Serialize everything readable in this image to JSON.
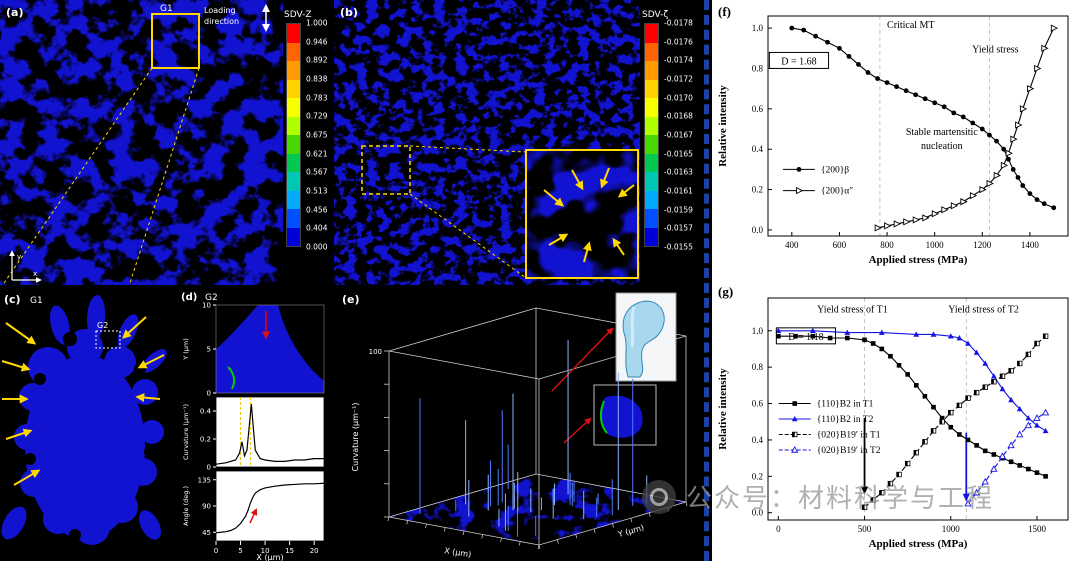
{
  "panel_a": {
    "label": "(a)",
    "region_label": "G1",
    "loading": [
      "Loading",
      "direction"
    ],
    "axes": {
      "x": "x",
      "y": "y"
    },
    "colorbar": {
      "title": "SDV-Z",
      "ticks": [
        "1.000",
        "0.946",
        "0.892",
        "0.838",
        "0.783",
        "0.729",
        "0.675",
        "0.621",
        "0.567",
        "0.513",
        "0.456",
        "0.404",
        "0.000"
      ],
      "colors": [
        "#ff0000",
        "#ff6400",
        "#ff9b00",
        "#ffd200",
        "#f8ff00",
        "#b0ff00",
        "#48d800",
        "#00c850",
        "#00c8b4",
        "#00aaff",
        "#0050ff",
        "#0000d8"
      ]
    }
  },
  "panel_b": {
    "label": "(b)",
    "colorbar": {
      "title": "SDV-ζ",
      "ticks": [
        "-0.0178",
        "-0.0176",
        "-0.0174",
        "-0.0172",
        "-0.0170",
        "-0.0168",
        "-0.0167",
        "-0.0165",
        "-0.0163",
        "-0.0161",
        "-0.0159",
        "-0.0157",
        "-0.0155"
      ],
      "colors": [
        "#ff0000",
        "#ff6400",
        "#ff9b00",
        "#ffd200",
        "#f8ff00",
        "#b0ff00",
        "#48d800",
        "#00c850",
        "#00c8b4",
        "#00aaff",
        "#0050ff",
        "#0000d8"
      ]
    }
  },
  "panel_c": {
    "label": "(c)",
    "region_label": "G1",
    "inner_label": "G2"
  },
  "panel_d": {
    "label": "(d)",
    "region_label": "G2",
    "plots": {
      "xlim": [
        0,
        22
      ],
      "xticks": [
        0,
        5,
        10,
        15,
        20
      ],
      "xlabel": "X (μm)",
      "top": {
        "ylabel": "Y (μm)",
        "yticks": [
          10,
          5,
          0
        ],
        "ylim": [
          0,
          10
        ]
      },
      "mid": {
        "ylabel": "Curvature (μm⁻¹)",
        "yticks": [
          0.4,
          0.2,
          0.0
        ],
        "ylim": [
          0,
          0.5
        ],
        "vlines": [
          5,
          7
        ],
        "curve_x": [
          0,
          2,
          4,
          4.8,
          5.3,
          5.8,
          6.3,
          6.8,
          7.2,
          7.6,
          8,
          9,
          10,
          12,
          14,
          16,
          18,
          20,
          22
        ],
        "curve_y": [
          0.02,
          0.03,
          0.05,
          0.1,
          0.18,
          0.08,
          0.12,
          0.3,
          0.45,
          0.28,
          0.12,
          0.06,
          0.05,
          0.04,
          0.04,
          0.05,
          0.05,
          0.06,
          0.06
        ]
      },
      "bot": {
        "ylabel": "Angle (deg.)",
        "yticks": [
          135,
          90,
          45
        ],
        "ylim": [
          30,
          150
        ],
        "curve_x": [
          0,
          1,
          2,
          3,
          4,
          5,
          6,
          6.5,
          7,
          7.5,
          8,
          9,
          10,
          12,
          14,
          16,
          18,
          20,
          22
        ],
        "curve_y": [
          44,
          45,
          46,
          48,
          52,
          60,
          72,
          82,
          95,
          105,
          112,
          118,
          121,
          124,
          126,
          127,
          128,
          128,
          129
        ]
      }
    }
  },
  "panel_e": {
    "label": "(e)",
    "zlabel": "Curvature (μm⁻¹)",
    "z_tick": "100",
    "xlabel": "X (μm)",
    "ylabel": "Y (μm)"
  },
  "watermark": {
    "text": "公众号：材料科学与工程"
  },
  "chart_data": [
    {
      "panel_label": "(f)",
      "type": "line",
      "title": "",
      "xlabel": "Applied stress (MPa)",
      "ylabel": "Relative intensity",
      "xlim": [
        300,
        1560
      ],
      "ylim": [
        -0.03,
        1.06
      ],
      "xticks": [
        400,
        600,
        800,
        1000,
        1200,
        1400
      ],
      "yticks": [
        0.0,
        0.2,
        0.4,
        0.6,
        0.8,
        1.0
      ],
      "vlines": [
        770,
        1230
      ],
      "legend": {
        "x": 430,
        "y": 0.3,
        "dy": 0.105
      },
      "annotations": [
        {
          "text": "Critical MT",
          "x": 800,
          "y": 1.0,
          "anchor": "start"
        },
        {
          "text": "Yield stress",
          "x": 1255,
          "y": 0.88
        },
        {
          "text": "Stable martensitic",
          "x": 1030,
          "y": 0.47
        },
        {
          "text": "nucleation",
          "x": 1030,
          "y": 0.4
        },
        {
          "text": "D = 1.68",
          "x": 430,
          "y": 0.82,
          "box": true
        }
      ],
      "series": [
        {
          "name": "{200}β",
          "color": "#000000",
          "marker": "circle",
          "line": "solid",
          "x": [
            400,
            450,
            500,
            550,
            600,
            640,
            680,
            720,
            760,
            800,
            840,
            880,
            920,
            960,
            1000,
            1040,
            1080,
            1120,
            1160,
            1200,
            1230,
            1260,
            1290,
            1310,
            1330,
            1350,
            1370,
            1400,
            1430,
            1460,
            1500
          ],
          "y": [
            1.0,
            0.99,
            0.96,
            0.93,
            0.9,
            0.86,
            0.82,
            0.78,
            0.75,
            0.73,
            0.71,
            0.69,
            0.67,
            0.65,
            0.63,
            0.61,
            0.58,
            0.56,
            0.53,
            0.5,
            0.47,
            0.44,
            0.4,
            0.35,
            0.3,
            0.26,
            0.22,
            0.18,
            0.15,
            0.13,
            0.11
          ]
        },
        {
          "name": "{200}α″",
          "color": "#000000",
          "marker": "tri-right-open",
          "line": "solid",
          "x": [
            760,
            800,
            840,
            880,
            920,
            960,
            1000,
            1040,
            1080,
            1120,
            1160,
            1200,
            1230,
            1260,
            1290,
            1310,
            1330,
            1350,
            1370,
            1400,
            1430,
            1460,
            1500
          ],
          "y": [
            0.01,
            0.02,
            0.03,
            0.04,
            0.05,
            0.06,
            0.08,
            0.1,
            0.12,
            0.14,
            0.17,
            0.2,
            0.23,
            0.27,
            0.32,
            0.38,
            0.45,
            0.52,
            0.6,
            0.7,
            0.8,
            0.9,
            1.0
          ]
        }
      ]
    },
    {
      "panel_label": "(g)",
      "type": "line",
      "title": "",
      "xlabel": "Applied stress (MPa)",
      "ylabel": "Relative intensity",
      "xlim": [
        -60,
        1680
      ],
      "ylim": [
        -0.04,
        1.18
      ],
      "xticks": [
        0,
        500,
        1000,
        1500
      ],
      "yticks": [
        0.0,
        0.2,
        0.4,
        0.6,
        0.8,
        1.0
      ],
      "vlines": [
        500,
        1090
      ],
      "legend": {
        "x": 95,
        "y": 0.6,
        "dy": 0.085
      },
      "annotations": [
        {
          "text": "Yield stress of T1",
          "x": 430,
          "y": 1.1,
          "color": "#000000"
        },
        {
          "text": "Yield stress of T2",
          "x": 1190,
          "y": 1.1,
          "color": "#1414e6"
        },
        {
          "text": "D = 1.18",
          "x": 160,
          "y": 0.95,
          "box": true
        }
      ],
      "arrows": [
        {
          "x": 500,
          "y1": 0.52,
          "y2": 0.1,
          "color": "#000000"
        },
        {
          "x": 1090,
          "y1": 0.44,
          "y2": 0.06,
          "color": "#1414e6"
        }
      ],
      "series": [
        {
          "name": "{110}B2 in T1",
          "color": "#000000",
          "marker": "square",
          "line": "solid",
          "x": [
            0,
            100,
            200,
            300,
            400,
            500,
            550,
            600,
            650,
            700,
            750,
            800,
            850,
            900,
            950,
            1000,
            1050,
            1100,
            1150,
            1200,
            1250,
            1300,
            1350,
            1400,
            1450,
            1500,
            1550
          ],
          "y": [
            0.97,
            0.97,
            0.97,
            0.96,
            0.96,
            0.95,
            0.93,
            0.9,
            0.86,
            0.81,
            0.76,
            0.7,
            0.64,
            0.58,
            0.52,
            0.47,
            0.43,
            0.4,
            0.37,
            0.34,
            0.32,
            0.3,
            0.28,
            0.26,
            0.24,
            0.22,
            0.2
          ]
        },
        {
          "name": "{110}B2 in T2",
          "color": "#1414e6",
          "marker": "tri-up",
          "line": "solid",
          "x": [
            0,
            200,
            400,
            600,
            800,
            900,
            1000,
            1050,
            1100,
            1150,
            1200,
            1250,
            1300,
            1350,
            1400,
            1450,
            1500,
            1550
          ],
          "y": [
            1.0,
            1.0,
            0.99,
            0.99,
            0.98,
            0.98,
            0.97,
            0.96,
            0.93,
            0.88,
            0.82,
            0.75,
            0.68,
            0.62,
            0.57,
            0.52,
            0.48,
            0.45
          ]
        },
        {
          "name": "{020}B19′ in T1",
          "color": "#000000",
          "marker": "square-half",
          "line": "dash",
          "x": [
            500,
            550,
            600,
            650,
            700,
            750,
            800,
            850,
            900,
            950,
            1000,
            1050,
            1100,
            1150,
            1200,
            1250,
            1300,
            1350,
            1400,
            1450,
            1500,
            1550
          ],
          "y": [
            0.03,
            0.07,
            0.11,
            0.16,
            0.21,
            0.27,
            0.33,
            0.39,
            0.45,
            0.5,
            0.55,
            0.59,
            0.63,
            0.66,
            0.69,
            0.72,
            0.75,
            0.78,
            0.82,
            0.87,
            0.93,
            0.97
          ]
        },
        {
          "name": "{020}B19′ in T2",
          "color": "#1414e6",
          "marker": "tri-up-open",
          "line": "dash",
          "x": [
            1100,
            1150,
            1200,
            1250,
            1300,
            1350,
            1400,
            1450,
            1500,
            1550
          ],
          "y": [
            0.05,
            0.11,
            0.17,
            0.24,
            0.31,
            0.37,
            0.43,
            0.48,
            0.52,
            0.55
          ]
        }
      ]
    }
  ]
}
